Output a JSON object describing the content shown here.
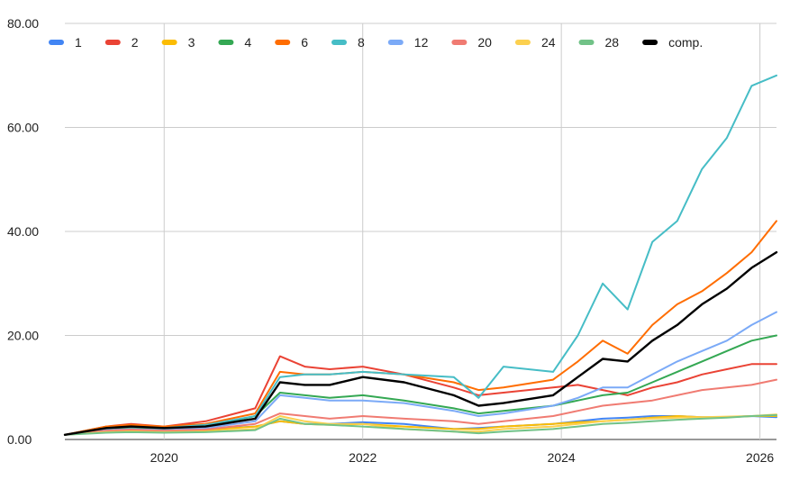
{
  "chart_data": {
    "type": "line",
    "title": "",
    "xlabel": "",
    "ylabel": "",
    "x_range": [
      "2019-01",
      "2026-03"
    ],
    "ylim": [
      0,
      80
    ],
    "y_ticks": [
      "0.00",
      "20.00",
      "40.00",
      "60.00",
      "80.00"
    ],
    "x_ticks": [
      "2020",
      "2022",
      "2024",
      "2026"
    ],
    "grid": true,
    "legend_position": "top",
    "x": [
      "2019-01",
      "2019-06",
      "2019-09",
      "2020-01",
      "2020-06",
      "2020-12",
      "2021-03",
      "2021-06",
      "2021-09",
      "2022-01",
      "2022-06",
      "2022-12",
      "2023-03",
      "2023-06",
      "2023-12",
      "2024-03",
      "2024-06",
      "2024-09",
      "2024-12",
      "2025-03",
      "2025-06",
      "2025-09",
      "2025-12",
      "2026-03"
    ],
    "series": [
      {
        "name": "1",
        "color": "#4285f4",
        "values": [
          0.9,
          1.8,
          2.0,
          1.8,
          2.0,
          2.5,
          3.5,
          3.0,
          3.0,
          3.3,
          3.0,
          2.0,
          2.2,
          2.5,
          3.0,
          3.5,
          4.0,
          4.2,
          4.5,
          4.5,
          4.3,
          4.3,
          4.5,
          4.3
        ]
      },
      {
        "name": "2",
        "color": "#ea4335",
        "values": [
          0.9,
          2.5,
          3.0,
          2.5,
          3.5,
          6.0,
          16.0,
          14.0,
          13.5,
          14.0,
          12.5,
          10.0,
          8.5,
          9.0,
          10.0,
          10.5,
          9.5,
          8.5,
          10.0,
          11.0,
          12.5,
          13.5,
          14.5,
          14.5
        ]
      },
      {
        "name": "3",
        "color": "#fbbc04",
        "values": [
          0.9,
          1.6,
          1.8,
          1.6,
          1.8,
          2.5,
          3.5,
          3.0,
          2.8,
          3.0,
          2.5,
          2.0,
          2.0,
          2.5,
          3.0,
          3.3,
          3.5,
          3.8,
          4.2,
          4.5,
          4.3,
          4.3,
          4.5,
          4.5
        ]
      },
      {
        "name": "4",
        "color": "#34a853",
        "values": [
          0.9,
          2.0,
          2.3,
          2.0,
          2.5,
          4.5,
          9.0,
          8.5,
          8.0,
          8.5,
          7.5,
          6.0,
          5.0,
          5.5,
          6.5,
          7.5,
          8.5,
          9.0,
          11.0,
          13.0,
          15.0,
          17.0,
          19.0,
          20.0
        ]
      },
      {
        "name": "6",
        "color": "#ff6d01",
        "values": [
          0.9,
          2.5,
          2.8,
          2.5,
          3.0,
          5.0,
          13.0,
          12.5,
          12.5,
          13.0,
          12.5,
          11.0,
          9.5,
          10.0,
          11.5,
          15.0,
          19.0,
          16.5,
          22.0,
          26.0,
          28.5,
          32.0,
          36.0,
          42.0
        ]
      },
      {
        "name": "8",
        "color": "#46bdc6",
        "values": [
          0.9,
          2.2,
          2.5,
          2.2,
          2.8,
          4.5,
          12.0,
          12.5,
          12.5,
          13.0,
          12.5,
          12.0,
          8.0,
          14.0,
          13.0,
          20.0,
          30.0,
          25.0,
          38.0,
          42.0,
          52.0,
          58.0,
          68.0,
          70.0
        ]
      },
      {
        "name": "12",
        "color": "#7baaf7",
        "values": [
          0.9,
          1.8,
          2.0,
          1.8,
          2.2,
          3.5,
          8.5,
          8.0,
          7.5,
          7.5,
          7.0,
          5.5,
          4.5,
          5.0,
          6.5,
          8.0,
          10.0,
          10.0,
          12.5,
          15.0,
          17.0,
          19.0,
          22.0,
          24.5
        ]
      },
      {
        "name": "20",
        "color": "#f07b72",
        "values": [
          0.9,
          1.7,
          1.9,
          1.7,
          1.9,
          3.0,
          5.0,
          4.5,
          4.0,
          4.5,
          4.0,
          3.5,
          3.0,
          3.5,
          4.5,
          5.5,
          6.5,
          7.0,
          7.5,
          8.5,
          9.5,
          10.0,
          10.5,
          11.5
        ]
      },
      {
        "name": "24",
        "color": "#fcd04f",
        "values": [
          0.9,
          1.4,
          1.5,
          1.4,
          1.5,
          2.0,
          4.5,
          3.5,
          3.0,
          3.0,
          2.0,
          1.5,
          1.5,
          2.0,
          2.5,
          3.0,
          3.5,
          3.8,
          4.0,
          4.2,
          4.3,
          4.4,
          4.5,
          4.8
        ]
      },
      {
        "name": "28",
        "color": "#71c287",
        "values": [
          0.9,
          1.3,
          1.4,
          1.3,
          1.4,
          1.8,
          4.0,
          3.0,
          2.8,
          2.5,
          2.0,
          1.5,
          1.2,
          1.5,
          2.0,
          2.5,
          3.0,
          3.2,
          3.5,
          3.8,
          4.0,
          4.2,
          4.5,
          4.7
        ]
      },
      {
        "name": "comp.",
        "color": "#000000",
        "values": [
          0.9,
          2.2,
          2.5,
          2.2,
          2.5,
          4.0,
          11.0,
          10.5,
          10.5,
          12.0,
          11.0,
          8.5,
          6.5,
          7.0,
          8.5,
          12.0,
          15.5,
          15.0,
          19.0,
          22.0,
          26.0,
          29.0,
          33.0,
          36.0
        ]
      }
    ]
  }
}
